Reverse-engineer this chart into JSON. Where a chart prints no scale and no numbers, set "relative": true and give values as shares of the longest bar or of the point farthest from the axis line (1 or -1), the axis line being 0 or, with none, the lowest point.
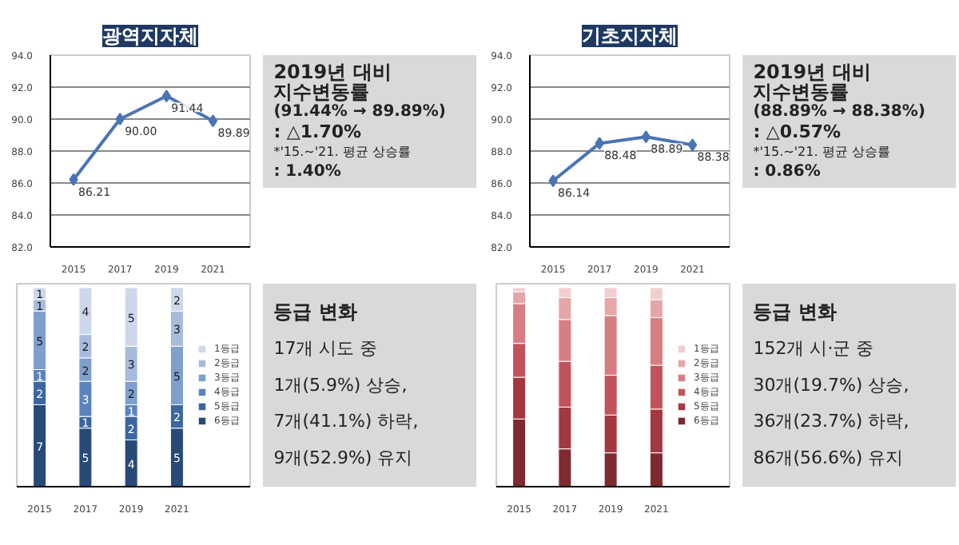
{
  "chart_data": [
    {
      "type": "line",
      "title": "광역지자체",
      "categories": [
        "2015",
        "2017",
        "2019",
        "2021"
      ],
      "series": [
        {
          "color": "#4a74b4",
          "values": [
            86.21,
            90.0,
            91.44,
            89.89
          ],
          "value_labels": [
            "86.21",
            "90.00",
            "91.44",
            "89.89"
          ]
        }
      ],
      "ylim": [
        82,
        94
      ],
      "yticks": [
        {
          "value": 82,
          "label": "82.0"
        },
        {
          "value": 84,
          "label": "84.0"
        },
        {
          "value": 86,
          "label": "86.0"
        },
        {
          "value": 88,
          "label": "88.0"
        },
        {
          "value": 90,
          "label": "90.0"
        },
        {
          "value": 92,
          "label": "92.0"
        },
        {
          "value": 94,
          "label": "94.0"
        }
      ],
      "grid": "y",
      "marker": "diamond",
      "line_style": "solid",
      "legend": false
    },
    {
      "type": "other",
      "annotations": [
        "2019년 대비",
        "지수변동률",
        "(91.44% → 89.89%)",
        ": △1.70%",
        "*'15.~'21. 평균 상승률",
        ": 1.40%"
      ]
    },
    {
      "type": "line",
      "title": "기초지자체",
      "categories": [
        "2015",
        "2017",
        "2019",
        "2021"
      ],
      "series": [
        {
          "color": "#4a74b4",
          "values": [
            86.14,
            88.48,
            88.89,
            88.38
          ],
          "value_labels": [
            "86.14",
            "88.48",
            "88.89",
            "88.38"
          ]
        }
      ],
      "ylim": [
        82,
        94
      ],
      "yticks": [
        {
          "value": 82,
          "label": "82.0"
        },
        {
          "value": 84,
          "label": "84.0"
        },
        {
          "value": 86,
          "label": "86.0"
        },
        {
          "value": 88,
          "label": "88.0"
        },
        {
          "value": 90,
          "label": "90.0"
        },
        {
          "value": 92,
          "label": "92.0"
        },
        {
          "value": 94,
          "label": "94.0"
        }
      ],
      "grid": "y",
      "marker": "diamond",
      "line_style": "solid",
      "legend": false
    },
    {
      "type": "other",
      "annotations": [
        "2019년 대비",
        "지수변동률",
        "(88.89% → 88.38%)",
        ": △0.57%",
        "*'15.~'21. 평균 상승률",
        ": 0.86%"
      ]
    },
    {
      "type": "bar",
      "stacked": true,
      "categories": [
        "2015",
        "2017",
        "2019",
        "2021"
      ],
      "data_labels": true,
      "tick_labels": "x",
      "legend": "right",
      "series": [
        {
          "name": "6등급",
          "color": "#274a78",
          "values": [
            7,
            5,
            4,
            5
          ]
        },
        {
          "name": "5등급",
          "color": "#3b66a0",
          "values": [
            2,
            1,
            2,
            2
          ]
        },
        {
          "name": "4등급",
          "color": "#5a84bd",
          "values": [
            1,
            3,
            1,
            null
          ]
        },
        {
          "name": "3등급",
          "color": "#7f9fcc",
          "values": [
            5,
            2,
            2,
            5
          ]
        },
        {
          "name": "2등급",
          "color": "#a7bcdc",
          "values": [
            1,
            2,
            3,
            3
          ]
        },
        {
          "name": "1등급",
          "color": "#cdd8ea",
          "values": [
            1,
            4,
            5,
            2
          ]
        }
      ]
    },
    {
      "type": "other",
      "annotations": [
        "등급 변화",
        "17개 시도 중",
        "1개(5.9%) 상승,",
        "7개(41.1%) 하락,",
        "9개(52.9%) 유지"
      ]
    },
    {
      "type": "bar",
      "stacked": true,
      "relative": true,
      "categories": [
        "2015",
        "2017",
        "2019",
        "2021"
      ],
      "legend": "right",
      "series": [
        {
          "name": "6등급",
          "color": "#7e2a30",
          "values": [
            0.34,
            0.19,
            0.17,
            0.17
          ]
        },
        {
          "name": "5등급",
          "color": "#a3383e",
          "values": [
            0.21,
            0.21,
            0.19,
            0.22
          ]
        },
        {
          "name": "4등급",
          "color": "#c2535a",
          "values": [
            0.17,
            0.23,
            0.2,
            0.22
          ]
        },
        {
          "name": "3등급",
          "color": "#d77e82",
          "values": [
            0.2,
            0.21,
            0.3,
            0.24
          ]
        },
        {
          "name": "2등급",
          "color": "#e6a6a8",
          "values": [
            0.06,
            0.11,
            0.09,
            0.09
          ]
        },
        {
          "name": "1등급",
          "color": "#f1cfd0",
          "values": [
            0.02,
            0.05,
            0.05,
            0.06
          ]
        }
      ]
    },
    {
      "type": "other",
      "annotations": [
        "등급 변화",
        "152개 시·군 중",
        "30개(19.7%) 상승,",
        "36개(23.7%) 하락,",
        "86개(56.6%) 유지"
      ]
    }
  ]
}
